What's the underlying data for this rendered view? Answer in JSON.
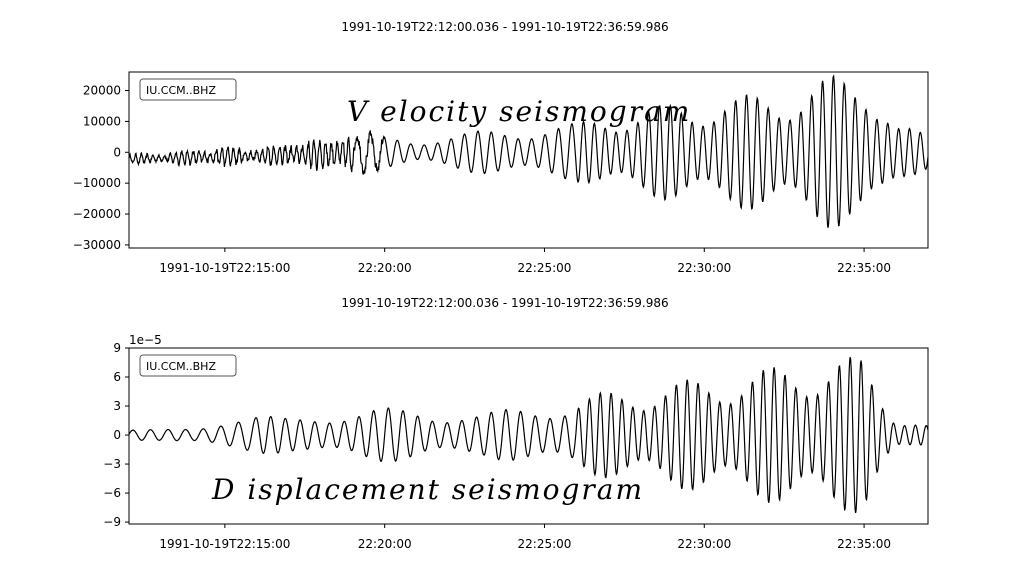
{
  "chart_data": [
    {
      "type": "line",
      "title": "1991-10-19T22:12:00.036  -  1991-10-19T22:36:59.986",
      "legend": "IU.CCM..BHZ",
      "legend_placement": "top-left",
      "annotation": "V elocity seismogram",
      "xlim": [
        "1991-10-19T22:12:00.036",
        "1991-10-19T22:36:59.986"
      ],
      "ylim": [
        -31000,
        26000
      ],
      "y_ticks": [
        20000,
        10000,
        0,
        -10000,
        -20000,
        -30000
      ],
      "y_tick_labels": [
        "20000",
        "10000",
        "0",
        "−10000",
        "−20000",
        "−30000"
      ],
      "x_ticks": [
        "1991-10-19T22:15:00",
        "1991-10-19T22:20:00",
        "1991-10-19T22:25:00",
        "1991-10-19T22:30:00",
        "1991-10-19T22:35:00"
      ],
      "x_tick_labels": [
        "1991-10-19T22:15:00",
        "22:20:00",
        "22:25:00",
        "22:30:00",
        "22:35:00"
      ],
      "grid": false,
      "series": [
        {
          "time_min": [
            12.0,
            13.0,
            14.0,
            15.0,
            16.0,
            17.0,
            18.0,
            19.0,
            20.0,
            21.0,
            22.0,
            23.0,
            24.0,
            25.0,
            26.0,
            27.0,
            28.0,
            29.0,
            30.0,
            31.0,
            32.0,
            33.0,
            34.0,
            35.0,
            36.0,
            37.0
          ],
          "amplitude_envelope": [
            1500,
            1500,
            2500,
            3000,
            2500,
            4000,
            4500,
            6000,
            5500,
            4500,
            5500,
            7000,
            8000,
            9000,
            9500,
            12500,
            14000,
            16000,
            17000,
            18000,
            20000,
            21000,
            25000,
            28000,
            9000,
            6000
          ],
          "y_min": -29500,
          "y_max": 26000
        }
      ]
    },
    {
      "type": "line",
      "title": "1991-10-19T22:12:00.036  -  1991-10-19T22:36:59.986",
      "legend": "IU.CCM..BHZ",
      "legend_placement": "top-left",
      "annotation": "D isplacement seismogram",
      "y_offset_label": "1e−5",
      "xlim": [
        "1991-10-19T22:12:00.036",
        "1991-10-19T22:36:59.986"
      ],
      "ylim": [
        -9.2,
        9.0
      ],
      "y_ticks": [
        9,
        6,
        3,
        0,
        -3,
        -6,
        -9
      ],
      "y_tick_labels": [
        "9",
        "6",
        "3",
        "0",
        "−3",
        "−6",
        "−9"
      ],
      "x_ticks": [
        "1991-10-19T22:15:00",
        "1991-10-19T22:20:00",
        "1991-10-19T22:25:00",
        "1991-10-19T22:30:00",
        "1991-10-19T22:35:00"
      ],
      "x_tick_labels": [
        "1991-10-19T22:15:00",
        "22:20:00",
        "22:25:00",
        "22:30:00",
        "22:35:00"
      ],
      "grid": false,
      "series": [
        {
          "time_min": [
            12.0,
            13.0,
            14.0,
            15.0,
            16.0,
            17.0,
            18.0,
            19.0,
            20.0,
            21.0,
            22.0,
            23.0,
            24.0,
            25.0,
            26.0,
            27.0,
            28.0,
            29.0,
            30.0,
            31.0,
            32.0,
            33.0,
            34.0,
            35.0,
            36.0,
            37.0
          ],
          "amplitude_envelope": [
            0.5,
            0.6,
            1.0,
            1.8,
            2.0,
            1.8,
            2.5,
            2.4,
            2.8,
            2.8,
            2.5,
            2.2,
            2.8,
            3.2,
            4.0,
            4.5,
            5.0,
            5.5,
            6.0,
            6.5,
            7.0,
            7.5,
            8.3,
            8.0,
            2.0,
            1.0
          ],
          "y_min": -8.3,
          "y_max": 8.3
        }
      ]
    }
  ]
}
